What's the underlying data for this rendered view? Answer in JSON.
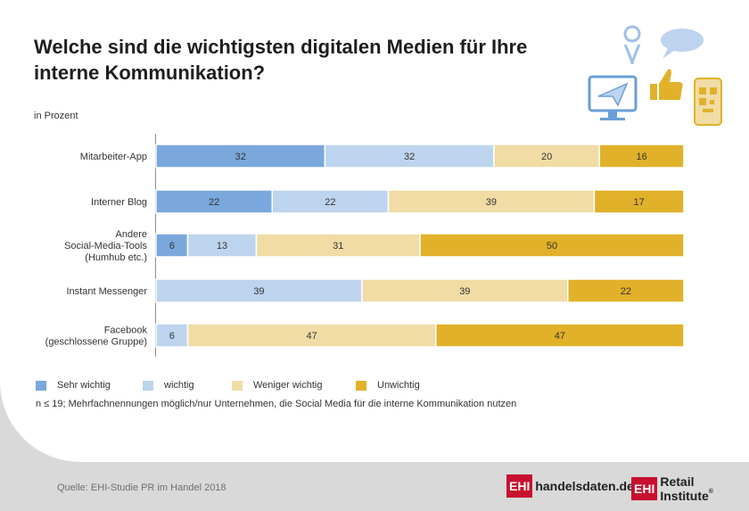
{
  "title": "Welche sind die wichtigsten digitalen Medien für Ihre interne Kommunikation?",
  "subtitle": "in Prozent",
  "footnote": "n ≤ 19; Mehrfachnennungen möglich/nur Unternehmen, die Social Media für die interne Kommunikation nutzen",
  "source": "Quelle: EHI-Studie PR im Handel 2018",
  "logos": {
    "ehi_mark": "EHI",
    "handelsdaten": "handelsdaten.de",
    "retail_institute": "Retail Institute",
    "registered": "®"
  },
  "colors": {
    "sehr_wichtig": "#7aa8dc",
    "wichtig": "#bdd4ee",
    "weniger_wichtig": "#f1dca5",
    "unwichtig": "#e1b12a"
  },
  "chart_data": {
    "type": "bar",
    "orientation": "horizontal",
    "stacked": true,
    "title": "Welche sind die wichtigsten digitalen Medien für Ihre interne Kommunikation?",
    "ylabel": "in Prozent",
    "categories": [
      [
        "Mitarbeiter-App"
      ],
      [
        "Interner Blog"
      ],
      [
        "Andere",
        "Social-Media-Tools",
        "(Humhub etc.)"
      ],
      [
        "Instant Messenger"
      ],
      [
        "Facebook",
        "(geschlossene Gruppe)"
      ]
    ],
    "series": [
      {
        "name": "Sehr wichtig",
        "color": "#7aa8dc",
        "values": [
          32,
          22,
          6,
          0,
          0
        ]
      },
      {
        "name": "wichtig",
        "color": "#bdd4ee",
        "values": [
          32,
          22,
          13,
          39,
          6
        ]
      },
      {
        "name": "Weniger wichtig",
        "color": "#f1dca5",
        "values": [
          20,
          39,
          31,
          39,
          47
        ]
      },
      {
        "name": "Unwichtig",
        "color": "#e1b12a",
        "values": [
          16,
          17,
          50,
          22,
          47
        ]
      }
    ],
    "xlim": [
      0,
      100
    ],
    "legend": "bottom-left"
  }
}
